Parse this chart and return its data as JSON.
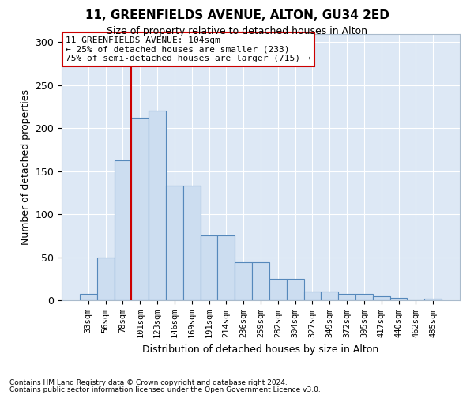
{
  "title": "11, GREENFIELDS AVENUE, ALTON, GU34 2ED",
  "subtitle": "Size of property relative to detached houses in Alton",
  "xlabel": "Distribution of detached houses by size in Alton",
  "ylabel": "Number of detached properties",
  "bin_labels": [
    "33sqm",
    "56sqm",
    "78sqm",
    "101sqm",
    "123sqm",
    "146sqm",
    "169sqm",
    "191sqm",
    "214sqm",
    "236sqm",
    "259sqm",
    "282sqm",
    "304sqm",
    "327sqm",
    "349sqm",
    "372sqm",
    "395sqm",
    "417sqm",
    "440sqm",
    "462sqm",
    "485sqm"
  ],
  "bar_heights": [
    7,
    50,
    163,
    212,
    220,
    133,
    133,
    75,
    75,
    44,
    44,
    25,
    25,
    10,
    10,
    7,
    7,
    5,
    3,
    0,
    2
  ],
  "bar_color": "#ccddf0",
  "bar_edge_color": "#5588bb",
  "vline_color": "#cc0000",
  "annotation_text": "11 GREENFIELDS AVENUE: 104sqm\n← 25% of detached houses are smaller (233)\n75% of semi-detached houses are larger (715) →",
  "annotation_box_color": "white",
  "annotation_box_edge_color": "#cc0000",
  "ylim": [
    0,
    310
  ],
  "yticks": [
    0,
    50,
    100,
    150,
    200,
    250,
    300
  ],
  "background_color": "#dde8f5",
  "footer_line1": "Contains HM Land Registry data © Crown copyright and database right 2024.",
  "footer_line2": "Contains public sector information licensed under the Open Government Licence v3.0."
}
